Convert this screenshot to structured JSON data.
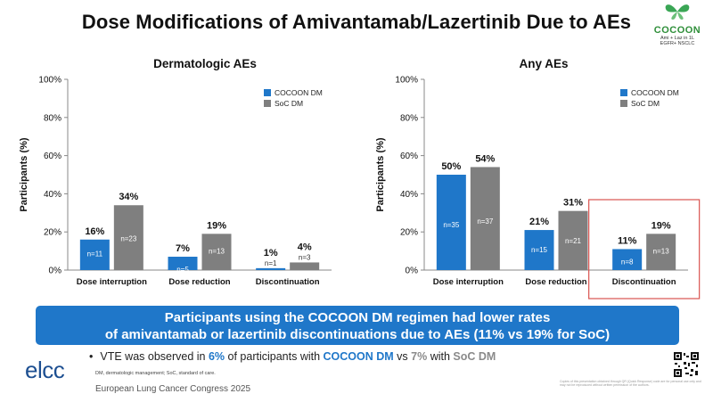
{
  "header": {
    "title": "Dose Modifications of Amivantamab/Lazertinib Due to AEs",
    "logo_name": "COCOON",
    "logo_line1": "Ami + Laz in 1L",
    "logo_line2": "EGFR+ NSCLC"
  },
  "colors": {
    "cocoon": "#1f77c9",
    "soc": "#7f7f7f",
    "highlight_box": "#d9534f"
  },
  "chart_data": [
    {
      "type": "bar",
      "title": "Dermatologic AEs",
      "ylabel": "Participants (%)",
      "ylim": [
        0,
        100
      ],
      "yticks": [
        "0%",
        "20%",
        "40%",
        "60%",
        "80%",
        "100%"
      ],
      "legend": "top-right",
      "categories": [
        "Dose interruption",
        "Dose reduction",
        "Discontinuation"
      ],
      "series": [
        {
          "name": "COCOON DM",
          "values": [
            16,
            7,
            1
          ],
          "labels": [
            "16%",
            "7%",
            "1%"
          ],
          "n": [
            "n=11",
            "n=5",
            "n=1"
          ]
        },
        {
          "name": "SoC DM",
          "values": [
            34,
            19,
            4
          ],
          "labels": [
            "34%",
            "19%",
            "4%"
          ],
          "n": [
            "n=23",
            "n=13",
            "n=3"
          ]
        }
      ]
    },
    {
      "type": "bar",
      "title": "Any AEs",
      "ylabel": "Participants (%)",
      "ylim": [
        0,
        100
      ],
      "yticks": [
        "0%",
        "20%",
        "40%",
        "60%",
        "80%",
        "100%"
      ],
      "legend": "top-right",
      "highlighted_category": "Discontinuation",
      "categories": [
        "Dose interruption",
        "Dose reduction",
        "Discontinuation"
      ],
      "series": [
        {
          "name": "COCOON DM",
          "values": [
            50,
            21,
            11
          ],
          "labels": [
            "50%",
            "21%",
            "11%"
          ],
          "n": [
            "n=35",
            "n=15",
            "n=8"
          ]
        },
        {
          "name": "SoC DM",
          "values": [
            54,
            31,
            19
          ],
          "labels": [
            "54%",
            "31%",
            "19%"
          ],
          "n": [
            "n=37",
            "n=21",
            "n=13"
          ]
        }
      ]
    }
  ],
  "banner": {
    "line1": "Participants using the COCOON DM regimen had lower rates",
    "line2": "of amivantamab or lazertinib discontinuations due to AEs (11% vs 19% for SoC)"
  },
  "bullet": {
    "marker": "•",
    "part1": "VTE was observed in ",
    "pct1": "6%",
    "part2": " of participants with ",
    "arm1": "COCOON DM",
    "part3": " vs ",
    "pct2": "7%",
    "part4": " with ",
    "arm2": "SoC DM"
  },
  "footer": {
    "footnote": "DM, dermatologic management; SoC, standard of care.",
    "org": "elcc",
    "congress": "European Lung Cancer Congress 2025",
    "copyright": "Copies of this presentation obtained through QR (Quick Response) code are for personal use only and may not be reproduced without written permission of the authors."
  }
}
